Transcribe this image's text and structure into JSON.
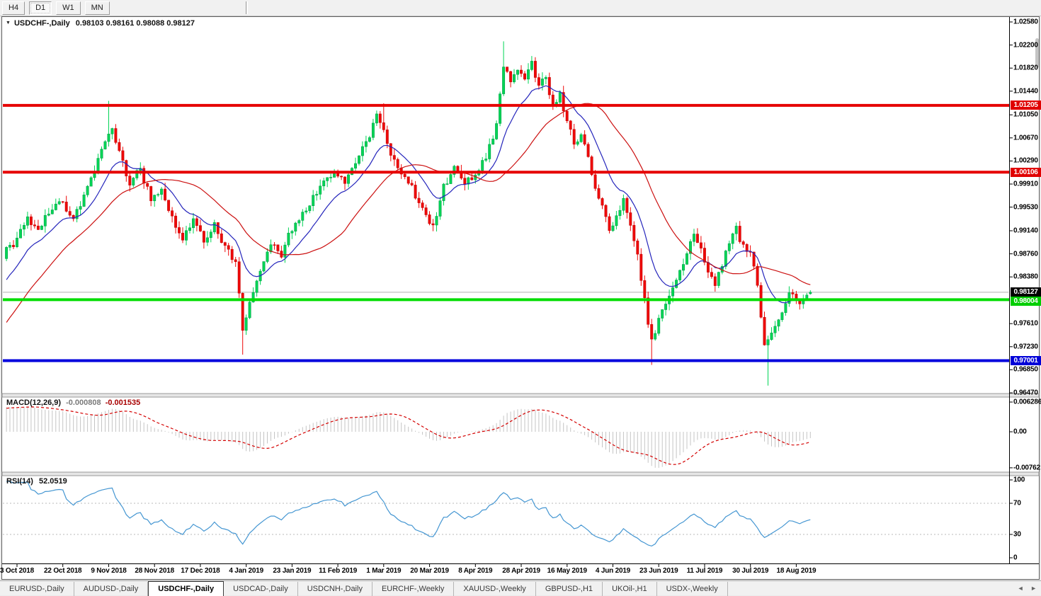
{
  "toolbar": {
    "buttons": [
      {
        "label": "H4",
        "active": false
      },
      {
        "label": "D1",
        "active": true
      },
      {
        "label": "W1",
        "active": false
      },
      {
        "label": "MN",
        "active": false
      }
    ]
  },
  "icons": {
    "dropdown": "▼",
    "tab_prev": "◄",
    "tab_next": "►"
  },
  "title": {
    "symbol": "USDCHF-,Daily",
    "ohlc_text": "0.98103 0.98161 0.98088 0.98127"
  },
  "price_axis": {
    "ticks": [
      "1.02580",
      "1.02200",
      "1.01820",
      "1.01440",
      "1.01050",
      "1.00670",
      "1.00290",
      "0.99910",
      "0.99530",
      "0.99140",
      "0.98760",
      "0.98380",
      "0.97610",
      "0.97230",
      "0.96850",
      "0.96470"
    ],
    "badges": [
      {
        "label": "1.01205",
        "price": 1.01205,
        "bg": "#e00000",
        "fg": "#ffffff"
      },
      {
        "label": "1.00106",
        "price": 1.00106,
        "bg": "#e00000",
        "fg": "#ffffff"
      },
      {
        "label": "0.98127",
        "price": 0.98127,
        "bg": "#000000",
        "fg": "#ffffff"
      },
      {
        "label": "0.98004",
        "price": 0.98004,
        "bg": "#00ce00",
        "fg": "#ffffff"
      },
      {
        "label": "0.97001",
        "price": 0.97001,
        "bg": "#0000d8",
        "fg": "#ffffff"
      }
    ]
  },
  "macd_panel": {
    "label": "MACD(12,26,9)",
    "value_main": "-0.000808",
    "value_signal": "-0.001535",
    "axis": [
      {
        "label": "0.006286",
        "v": 0.006286
      },
      {
        "label": "0.00",
        "v": 0
      },
      {
        "label": "-0.00762",
        "v": -0.00762
      }
    ],
    "hist_color": "#c4c4c4",
    "signal_color": "#d40000"
  },
  "rsi_panel": {
    "label": "RSI(14)",
    "value": "52.0519",
    "axis": [
      {
        "label": "100",
        "v": 100
      },
      {
        "label": "70",
        "v": 70
      },
      {
        "label": "30",
        "v": 30
      },
      {
        "label": "0",
        "v": 0
      }
    ],
    "levels": [
      70,
      30
    ],
    "line_color": "#4496d2",
    "level_color": "#b8b8b8"
  },
  "date_axis": {
    "labels": [
      "3 Oct 2018",
      "22 Oct 2018",
      "9 Nov 2018",
      "28 Nov 2018",
      "17 Dec 2018",
      "4 Jan 2019",
      "23 Jan 2019",
      "11 Feb 2019",
      "1 Mar 2019",
      "20 Mar 2019",
      "8 Apr 2019",
      "28 Apr 2019",
      "16 May 2019",
      "4 Jun 2019",
      "23 Jun 2019",
      "11 Jul 2019",
      "30 Jul 2019",
      "18 Aug 2019"
    ]
  },
  "tabs": {
    "items": [
      "EURUSD-,Daily",
      "AUDUSD-,Daily",
      "USDCHF-,Daily",
      "USDCAD-,Daily",
      "USDCNH-,Daily",
      "EURCHF-,Weekly",
      "XAUUSD-,Weekly",
      "GBPUSD-,H1",
      "UKOil-,H1",
      "USDX-,Weekly"
    ],
    "active_index": 2
  },
  "colors": {
    "bull": "#00d455",
    "bull_border": "#009944",
    "bear": "#ee0808",
    "bear_border": "#c00000",
    "ma_fast": "#2424bb",
    "ma_slow": "#cc1111",
    "level_red": "#e60000",
    "level_green": "#00dd00",
    "level_blue": "#0000dd",
    "price_line": "#b0b0b0"
  },
  "chart_data": {
    "type": "candlestick",
    "symbol": "USDCHF",
    "period": "Daily",
    "visible_range": {
      "start": "3 Oct 2018",
      "end": "23 Aug 2019"
    },
    "price_range": [
      0.9647,
      1.0258
    ],
    "bars_per_gridline": 13,
    "last_candle": {
      "open": 0.98103,
      "high": 0.98161,
      "low": 0.98088,
      "close": 0.98127
    },
    "current_price": 0.98127,
    "levels": [
      {
        "price": 1.01205,
        "type": "resistance",
        "color": "red"
      },
      {
        "price": 1.00106,
        "type": "resistance",
        "color": "red"
      },
      {
        "price": 0.98004,
        "type": "support",
        "color": "green"
      },
      {
        "price": 0.97001,
        "type": "support",
        "color": "blue"
      }
    ],
    "close_anchors": [
      [
        -45,
        0.956
      ],
      [
        -35,
        0.962
      ],
      [
        -25,
        0.9705
      ],
      [
        -15,
        0.9775
      ],
      [
        -8,
        0.9845
      ],
      [
        -3,
        0.988
      ],
      [
        0,
        0.99
      ],
      [
        3,
        0.9935
      ],
      [
        6,
        0.991
      ],
      [
        9,
        0.9945
      ],
      [
        13,
        0.996
      ],
      [
        16,
        0.993
      ],
      [
        19,
        0.9975
      ],
      [
        22,
        1.001
      ],
      [
        25,
        1.0065
      ],
      [
        27,
        1.0085
      ],
      [
        29,
        1.004
      ],
      [
        32,
        0.999
      ],
      [
        35,
        1.0015
      ],
      [
        38,
        0.9965
      ],
      [
        41,
        0.9985
      ],
      [
        44,
        0.9935
      ],
      [
        47,
        0.99
      ],
      [
        50,
        0.9935
      ],
      [
        53,
        0.9895
      ],
      [
        56,
        0.9925
      ],
      [
        59,
        0.9885
      ],
      [
        62,
        0.986
      ],
      [
        64,
        0.9755
      ],
      [
        66,
        0.9795
      ],
      [
        69,
        0.985
      ],
      [
        72,
        0.9895
      ],
      [
        75,
        0.9875
      ],
      [
        78,
        0.992
      ],
      [
        81,
        0.9945
      ],
      [
        84,
        0.997
      ],
      [
        87,
        0.999
      ],
      [
        90,
        1.001
      ],
      [
        93,
        0.999
      ],
      [
        96,
        1.0025
      ],
      [
        99,
        1.006
      ],
      [
        102,
        1.01
      ],
      [
        104,
        1.0085
      ],
      [
        106,
        1.004
      ],
      [
        109,
        1.0005
      ],
      [
        112,
        0.9985
      ],
      [
        115,
        0.9945
      ],
      [
        118,
        0.992
      ],
      [
        121,
        0.999
      ],
      [
        124,
        1.0015
      ],
      [
        127,
        0.999
      ],
      [
        130,
        1.001
      ],
      [
        133,
        1.003
      ],
      [
        136,
        1.009
      ],
      [
        138,
        1.0185
      ],
      [
        140,
        1.0155
      ],
      [
        142,
        1.018
      ],
      [
        144,
        1.0165
      ],
      [
        146,
        1.019
      ],
      [
        148,
        1.015
      ],
      [
        150,
        1.0165
      ],
      [
        152,
        1.012
      ],
      [
        154,
        1.014
      ],
      [
        156,
        1.0095
      ],
      [
        158,
        1.006
      ],
      [
        160,
        1.0075
      ],
      [
        162,
        1.003
      ],
      [
        164,
        0.9985
      ],
      [
        166,
        0.995
      ],
      [
        168,
        0.992
      ],
      [
        170,
        0.9935
      ],
      [
        172,
        0.9965
      ],
      [
        174,
        0.992
      ],
      [
        176,
        0.987
      ],
      [
        178,
        0.98
      ],
      [
        180,
        0.973
      ],
      [
        182,
        0.9765
      ],
      [
        184,
        0.9795
      ],
      [
        186,
        0.982
      ],
      [
        188,
        0.9855
      ],
      [
        190,
        0.9875
      ],
      [
        192,
        0.9905
      ],
      [
        194,
        0.9885
      ],
      [
        196,
        0.9845
      ],
      [
        198,
        0.9825
      ],
      [
        200,
        0.986
      ],
      [
        202,
        0.989
      ],
      [
        204,
        0.9915
      ],
      [
        206,
        0.989
      ],
      [
        208,
        0.988
      ],
      [
        210,
        0.982
      ],
      [
        212,
        0.972
      ],
      [
        214,
        0.9745
      ],
      [
        216,
        0.977
      ],
      [
        218,
        0.98
      ],
      [
        220,
        0.9815
      ],
      [
        222,
        0.98
      ],
      [
        225,
        0.98127
      ]
    ],
    "extreme_wicks": [
      {
        "bar": 26,
        "high": 1.0128
      },
      {
        "bar": 104,
        "high": 1.0124
      },
      {
        "bar": 138,
        "high": 1.0226
      },
      {
        "bar": 64,
        "low": 0.971
      },
      {
        "bar": 180,
        "low": 0.9693
      },
      {
        "bar": 213,
        "low": 0.9659
      }
    ],
    "moving_averages": [
      {
        "type": "EMA",
        "period": 13,
        "color": "blue"
      },
      {
        "type": "SMA",
        "period": 30,
        "color": "red"
      }
    ],
    "indicators": [
      {
        "name": "MACD",
        "params": [
          12,
          26,
          9
        ],
        "current": [
          -0.000808,
          -0.001535
        ],
        "axis_max": 0.006286,
        "axis_min": -0.00762
      },
      {
        "name": "RSI",
        "params": [
          14
        ],
        "current": 52.0519,
        "overbought": 70,
        "oversold": 30
      }
    ]
  }
}
